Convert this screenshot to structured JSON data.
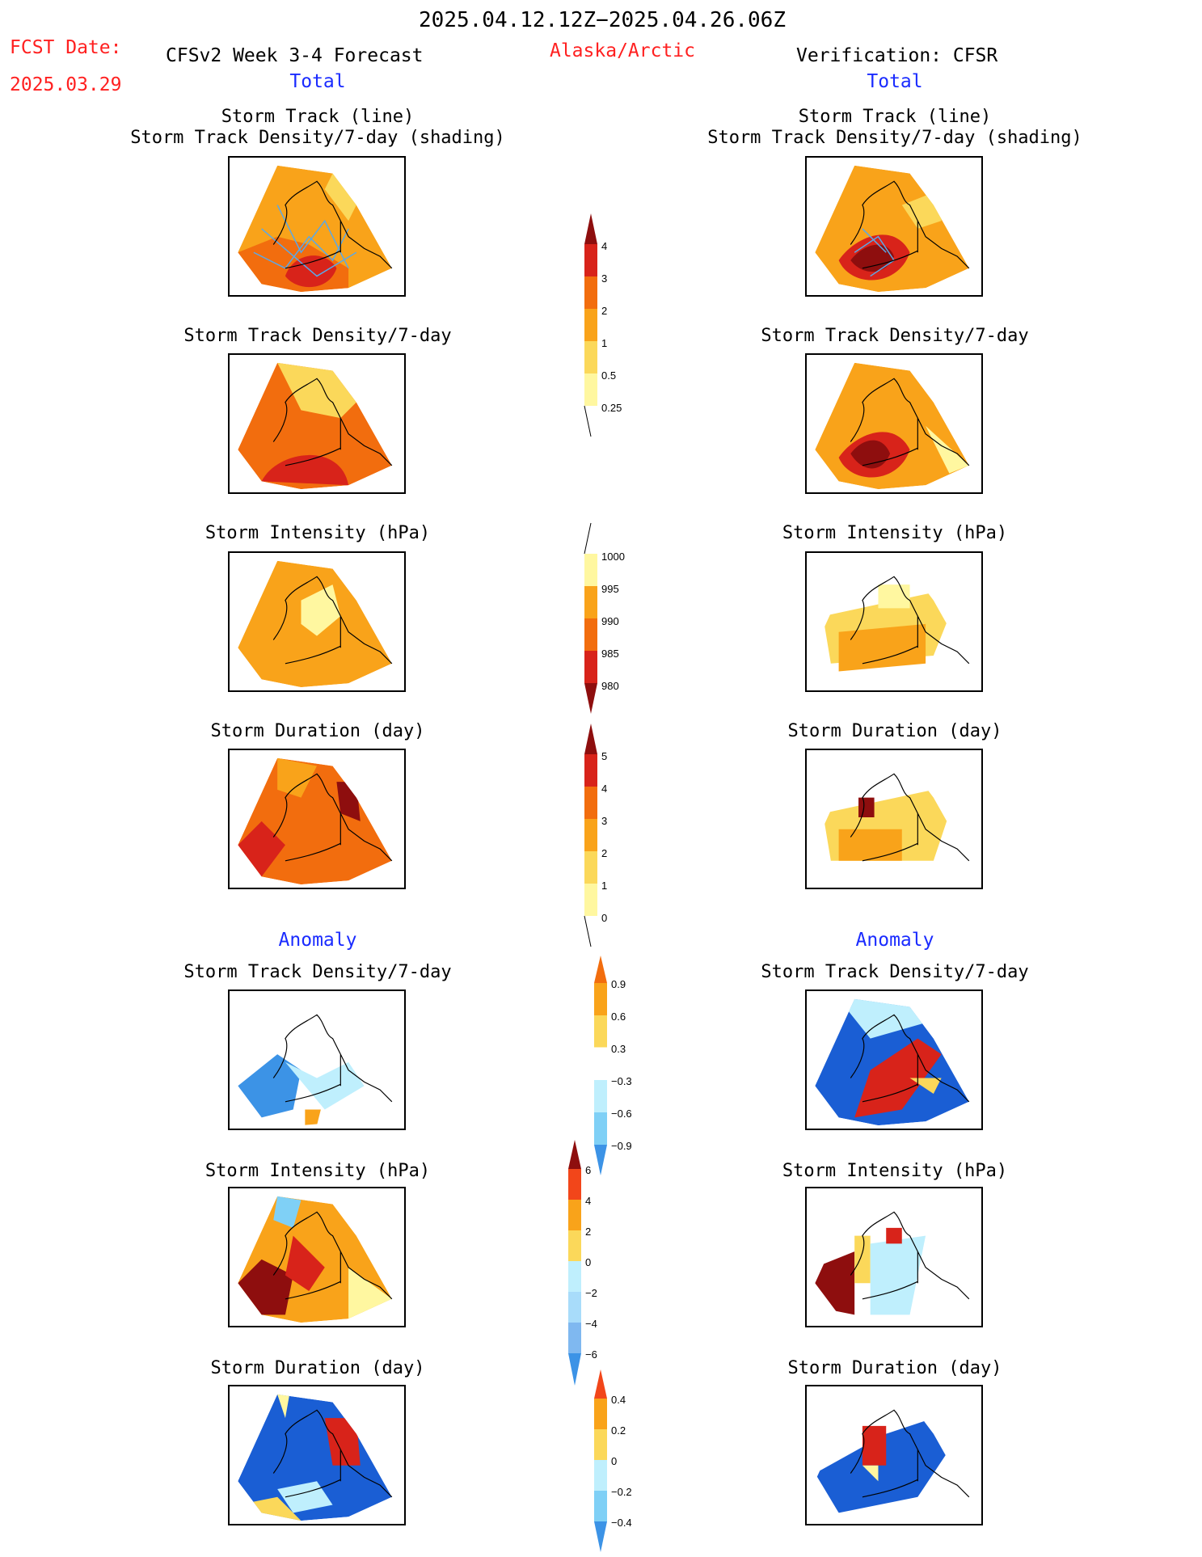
{
  "header": {
    "date_range": "2025.04.12.12Z−2025.04.26.06Z",
    "fcst_label": "FCST Date:",
    "fcst_date": "2025.03.29",
    "model_title": "CFSv2 Week 3-4 Forecast",
    "region": "Alaska/Arctic",
    "verification": "Verification: CFSR",
    "total_left": "Total",
    "total_right": "Total",
    "anomaly_left": "Anomaly",
    "anomaly_right": "Anomaly"
  },
  "titles": {
    "track_line": "Storm Track (line)",
    "track_shading": "Storm Track Density/7-day (shading)",
    "density": "Storm Track Density/7-day",
    "intensity": "Storm Intensity (hPa)",
    "duration": "Storm Duration (day)"
  },
  "colorbars": {
    "density_total": [
      "4",
      "3",
      "2",
      "1",
      "0.5",
      "0.25"
    ],
    "intensity_total": [
      "1000",
      "995",
      "990",
      "985",
      "980"
    ],
    "duration_total": [
      "5",
      "4",
      "3",
      "2",
      "1",
      "0"
    ],
    "density_anom": [
      "0.9",
      "0.6",
      "0.3",
      "−0.3",
      "−0.6",
      "−0.9"
    ],
    "intensity_anom": [
      "6",
      "4",
      "2",
      "0",
      "−2",
      "−4",
      "−6"
    ],
    "duration_anom": [
      "0.4",
      "0.2",
      "0",
      "−0.2",
      "−0.4"
    ]
  },
  "colors": {
    "warm": [
      "#fff7a0",
      "#fbd85a",
      "#f9a31a",
      "#f26d0e",
      "#d8231a",
      "#8e0e0e"
    ],
    "cool": [
      "#bfeffd",
      "#7fd0f6",
      "#3c93e6",
      "#1a5ed4"
    ],
    "track_line": "#5aa8e8"
  }
}
